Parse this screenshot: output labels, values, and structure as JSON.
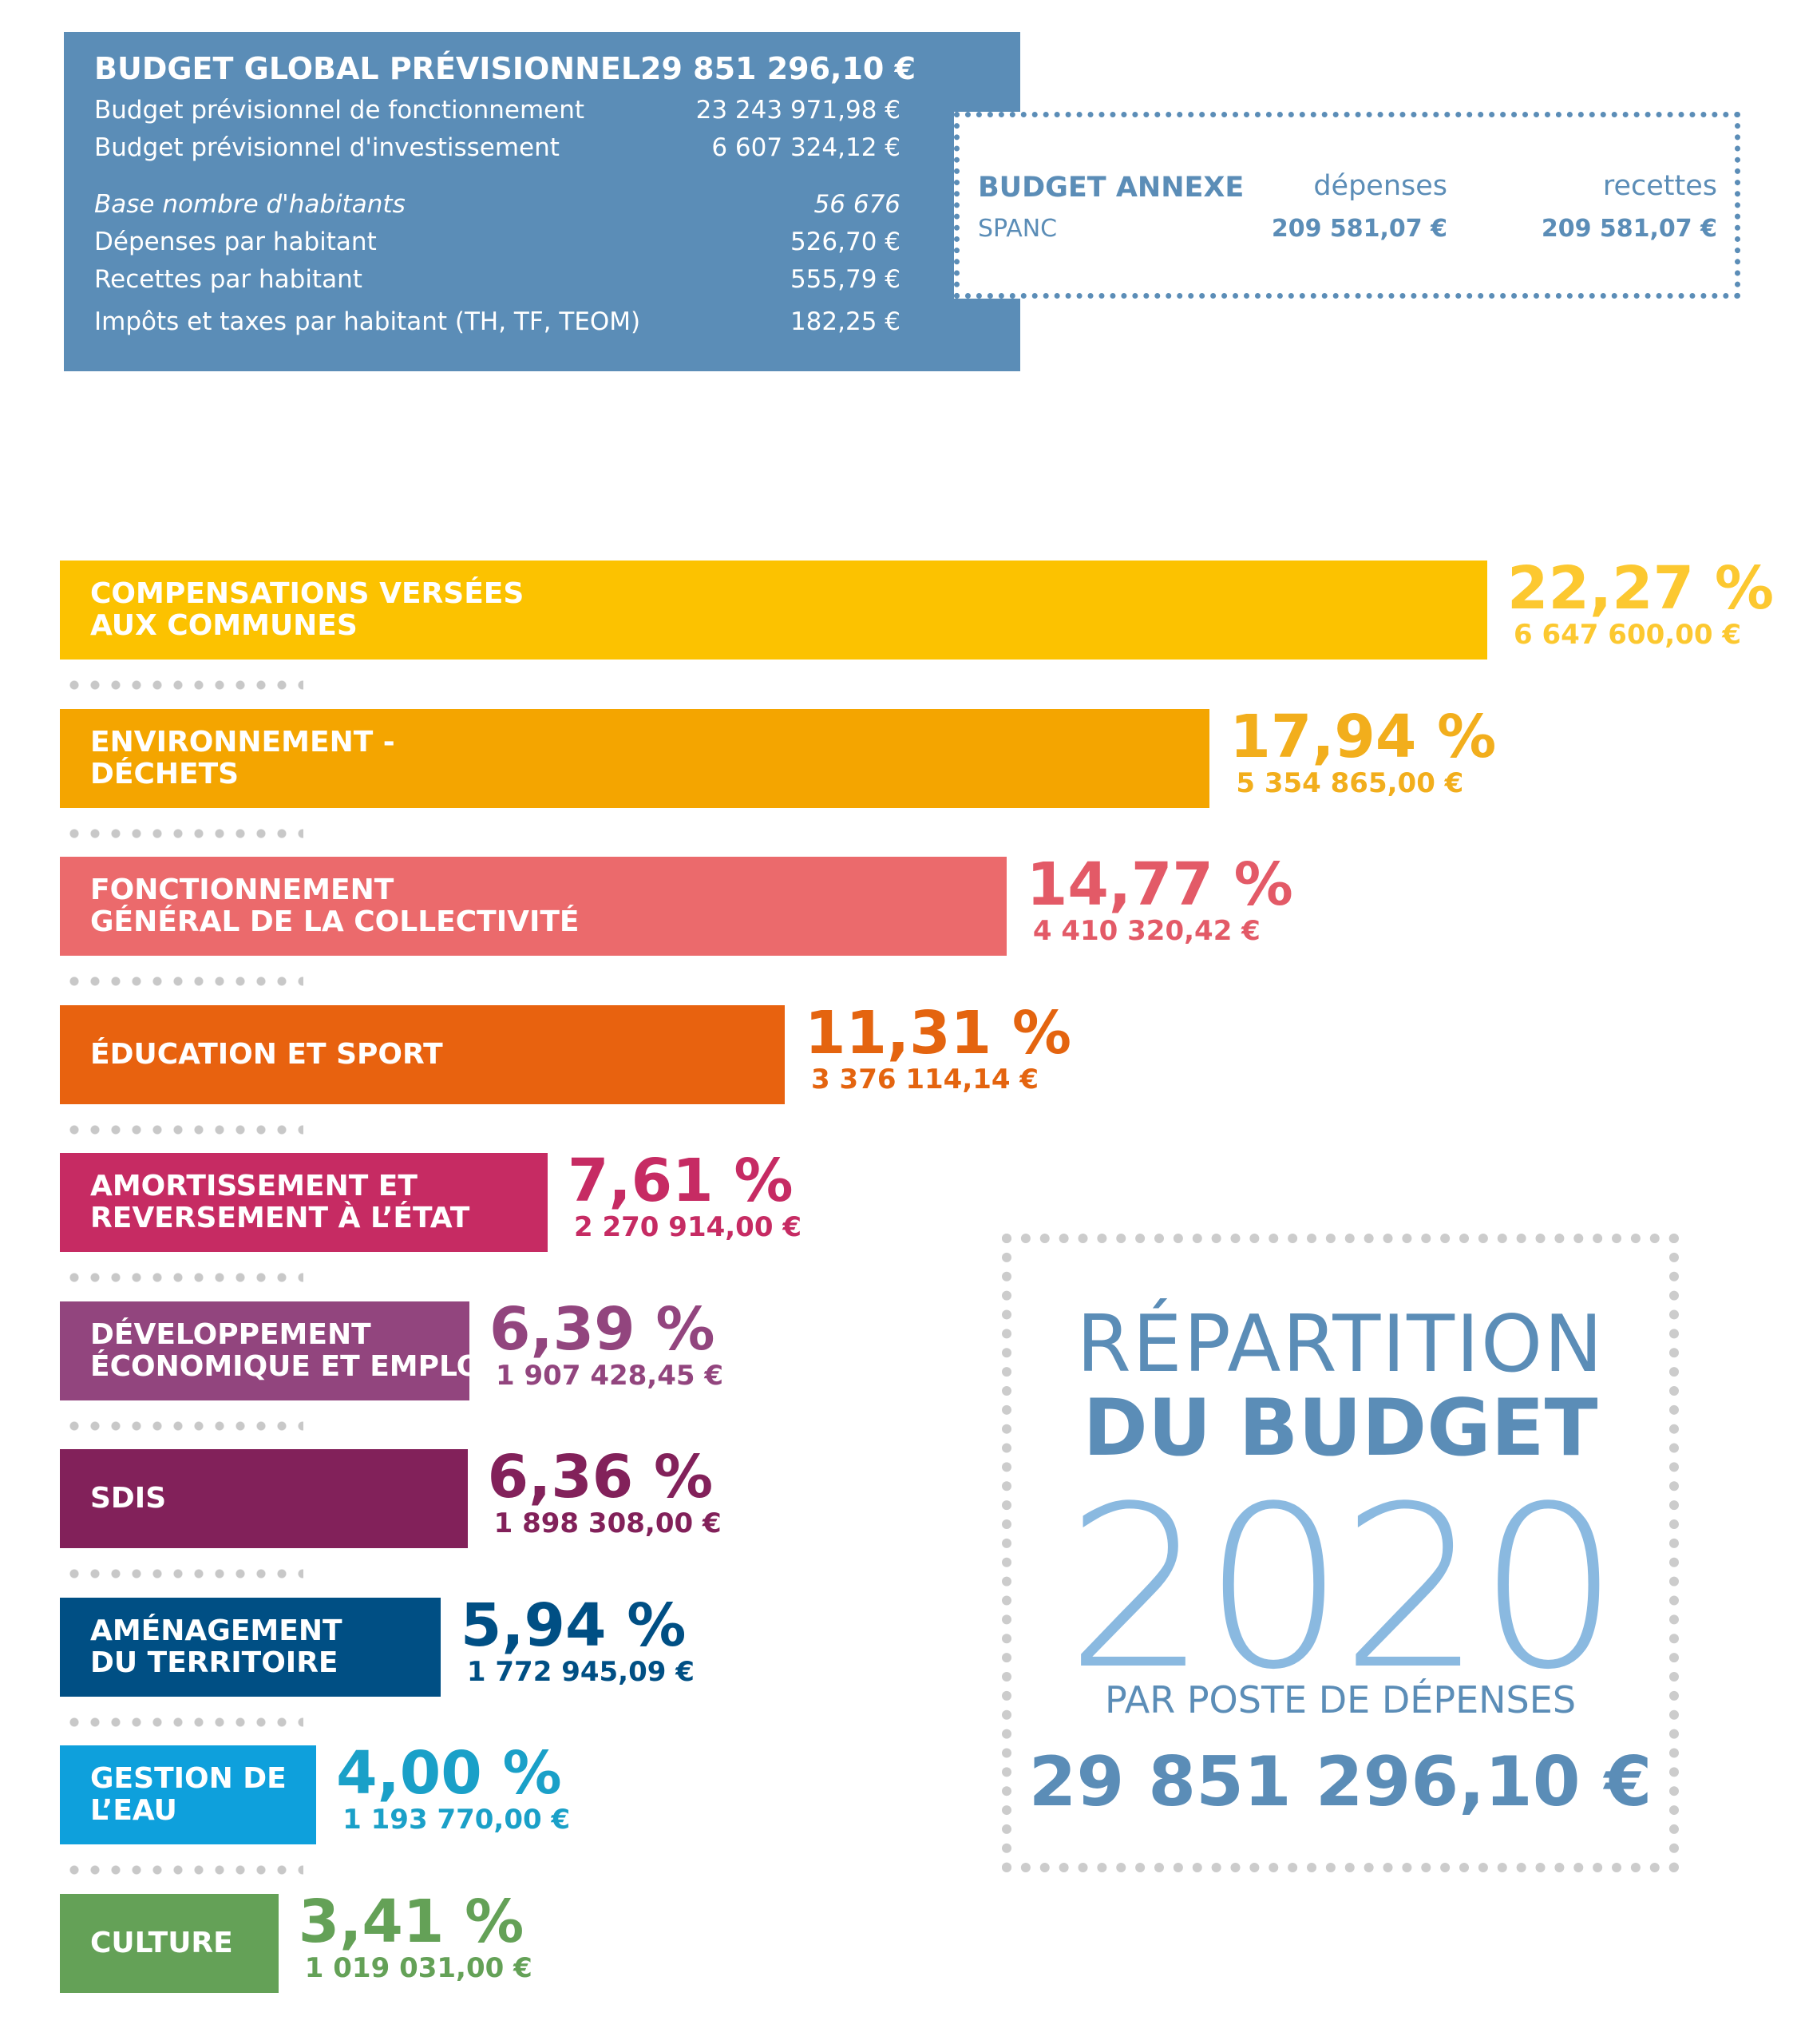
{
  "summary": {
    "title": "BUDGET GLOBAL PRÉVISIONNEL",
    "title_value": "29 851 296,10 €",
    "rows": [
      {
        "label": "Budget prévisionnel de fonctionnement",
        "value": "23 243 971,98 €"
      },
      {
        "label": "Budget prévisionnel d'investissement",
        "value": "6 607 324,12 €"
      },
      {
        "label": "Base nombre d'habitants",
        "value": "56 676"
      },
      {
        "label": "Dépenses par habitant",
        "value": "526,70 €"
      },
      {
        "label": "Recettes par habitant",
        "value": "555,79 €"
      },
      {
        "label": "Impôts et taxes par habitant (TH, TF, TEOM)",
        "value": "182,25 €"
      }
    ]
  },
  "annexe": {
    "title": "BUDGET ANNEXE",
    "subtitle": "SPANC",
    "col1_label": "dépenses",
    "col2_label": "recettes",
    "col1_value": "209 581,07 €",
    "col2_value": "209 581,07 €"
  },
  "title_box": {
    "line1": "RÉPARTITION",
    "line2": "DU BUDGET",
    "year": "2020",
    "subtitle": "PAR POSTE DE DÉPENSES",
    "total": "29 851 296,10 €"
  },
  "chart_data": {
    "type": "bar",
    "orientation": "horizontal",
    "categories": [
      [
        "COMPENSATIONS VERSÉES",
        "AUX COMMUNES"
      ],
      [
        "ENVIRONNEMENT -",
        "DÉCHETS"
      ],
      [
        "FONCTIONNEMENT",
        "GÉNÉRAL DE LA COLLECTIVITÉ"
      ],
      [
        "ÉDUCATION ET SPORT"
      ],
      [
        "AMORTISSEMENT ET",
        "REVERSEMENT À L’ÉTAT"
      ],
      [
        "DÉVELOPPEMENT",
        "ÉCONOMIQUE ET EMPLOI"
      ],
      [
        "SDIS"
      ],
      [
        "AMÉNAGEMENT",
        "DU TERRITOIRE"
      ],
      [
        "GESTION DE",
        "L’EAU"
      ],
      [
        "CULTURE"
      ]
    ],
    "values": [
      22.27,
      17.94,
      14.77,
      11.31,
      7.61,
      6.39,
      6.36,
      5.94,
      4.0,
      3.41
    ],
    "percent_labels": [
      "22,27 %",
      "17,94 %",
      "14,77 %",
      "11,31 %",
      "7,61 %",
      "6,39 %",
      "6,36 %",
      "5,94 %",
      "4,00 %",
      "3,41 %"
    ],
    "amount_labels": [
      "6 647 600,00 €",
      "5 354 865,00 €",
      "4 410 320,42 €",
      "3 376 114,14 €",
      "2 270 914,00 €",
      "1 907 428,45 €",
      "1 898 308,00 €",
      "1 772 945,09 €",
      "1 193 770,00 €",
      "1 019 031,00 €"
    ],
    "colors": [
      "#fcc200",
      "#f4a500",
      "#eb6a6c",
      "#e8620f",
      "#c62b63",
      "#92457e",
      "#82215a",
      "#004f84",
      "#0ea0dc",
      "#64a157"
    ],
    "label_colors": [
      "#fcc830",
      "#f2ae1c",
      "#e35a67",
      "#e4640f",
      "#c62b63",
      "#92457e",
      "#82215a",
      "#004f84",
      "#1aa0c8",
      "#64a157"
    ],
    "unit": "%"
  }
}
